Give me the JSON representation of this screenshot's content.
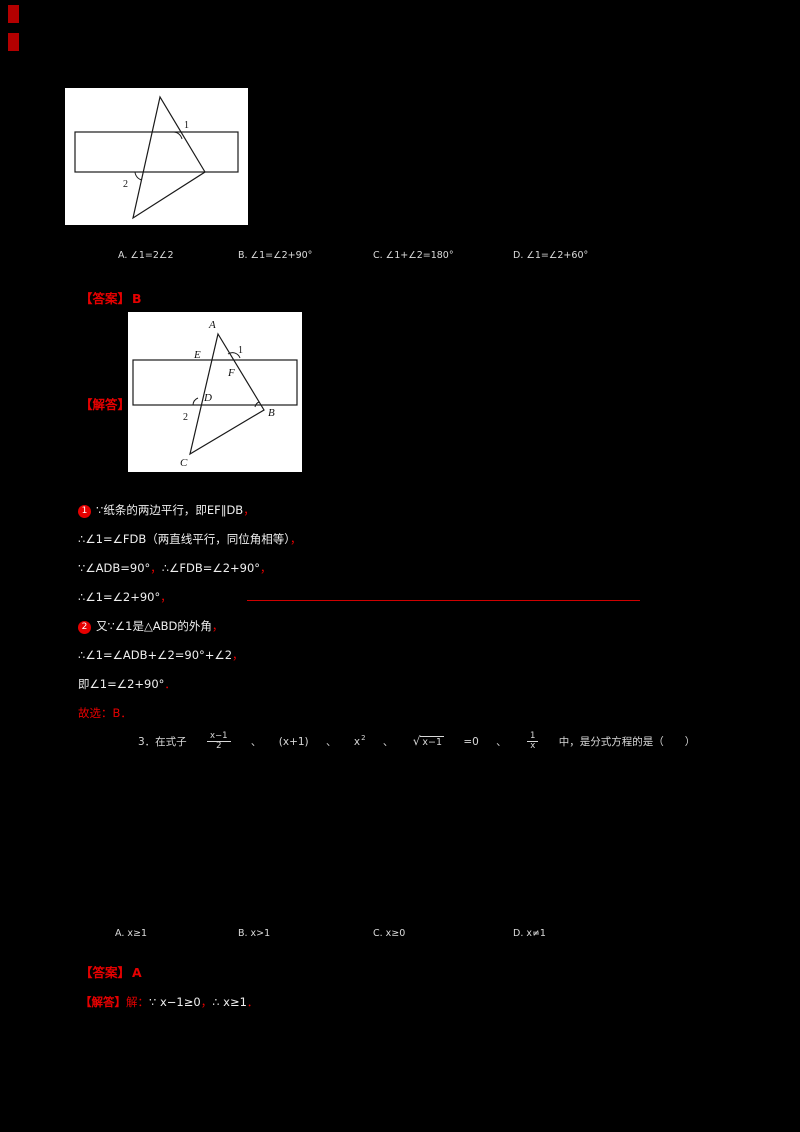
{
  "figure1": {
    "labels": {
      "n1": "1",
      "n2": "2"
    }
  },
  "figure2": {
    "labels": {
      "A": "A",
      "B": "B",
      "C": "C",
      "D": "D",
      "E": "E",
      "F": "F",
      "n1": "1",
      "n2": "2"
    }
  },
  "question1": {
    "options": [
      "A. ∠1=2∠2",
      "B. ∠1=∠2+90°",
      "C. ∠1+∠2=180°",
      "D. ∠1=∠2+60°"
    ]
  },
  "answer1": {
    "label": "【答案】",
    "value": "B"
  },
  "solution1": {
    "label": "【解答】",
    "lines": [
      [
        {
          "chip": "1"
        },
        {
          "t": "∵纸条的两边平行，即EF∥DB"
        },
        {
          "t": "，",
          "c": "#e60000"
        }
      ],
      [
        {
          "t": "∴∠1=∠FDB（两直线平行，同位角相等）"
        },
        {
          "t": "，",
          "c": "#e60000"
        }
      ],
      [
        {
          "t": "∵∠ADB=90°"
        },
        {
          "t": "，",
          "c": "#e60000"
        },
        {
          "t": "∴∠FDB=∠2+90°"
        },
        {
          "t": "，",
          "c": "#e60000"
        }
      ],
      [
        {
          "t": "∴∠1=∠2+90°"
        },
        {
          "t": "，",
          "c": "#e60000"
        }
      ],
      [
        {
          "chip": "2"
        },
        {
          "t": "又∵∠1是△ABD的外角"
        },
        {
          "t": "，",
          "c": "#e60000"
        }
      ],
      [
        {
          "t": "∴∠1=∠ADB+∠2=90°+∠2"
        },
        {
          "t": "，",
          "c": "#e60000"
        }
      ],
      [
        {
          "t": "即∠1=∠2+90°"
        },
        {
          "t": "．",
          "c": "#e60000"
        }
      ],
      [
        {
          "t": "故选：B．",
          "c": "#e60000"
        }
      ]
    ]
  },
  "question3": {
    "statement": [
      {
        "t": "3．在式子 "
      },
      {
        "frac": [
          "x−1",
          "2"
        ]
      },
      {
        "t": " 、 (x+1) 、 "
      },
      {
        "t": "x"
      },
      {
        "sup": "2"
      },
      {
        "t": " 、 "
      },
      {
        "sqrt": "x−1"
      },
      {
        "t": " =0 、 "
      },
      {
        "frac": [
          "1",
          "x"
        ]
      },
      {
        "t": " 中，是分式方程的是（　　）"
      }
    ]
  },
  "question4": {
    "options": [
      "A. x≥1",
      "B. x>1",
      "C. x≥0",
      "D. x≠1"
    ]
  },
  "answer2": {
    "label": "【答案】",
    "value": "A"
  },
  "solution2": {
    "label": "【解答】",
    "segments": [
      {
        "t": "解：",
        "c": "#e60000"
      },
      {
        "t": "∵ x−1≥0",
        "c": "#efefef"
      },
      {
        "t": "，",
        "c": "#e60000"
      },
      {
        "t": "∴ x≥1",
        "c": "#efefef"
      },
      {
        "t": "．",
        "c": "#e60000"
      }
    ]
  }
}
